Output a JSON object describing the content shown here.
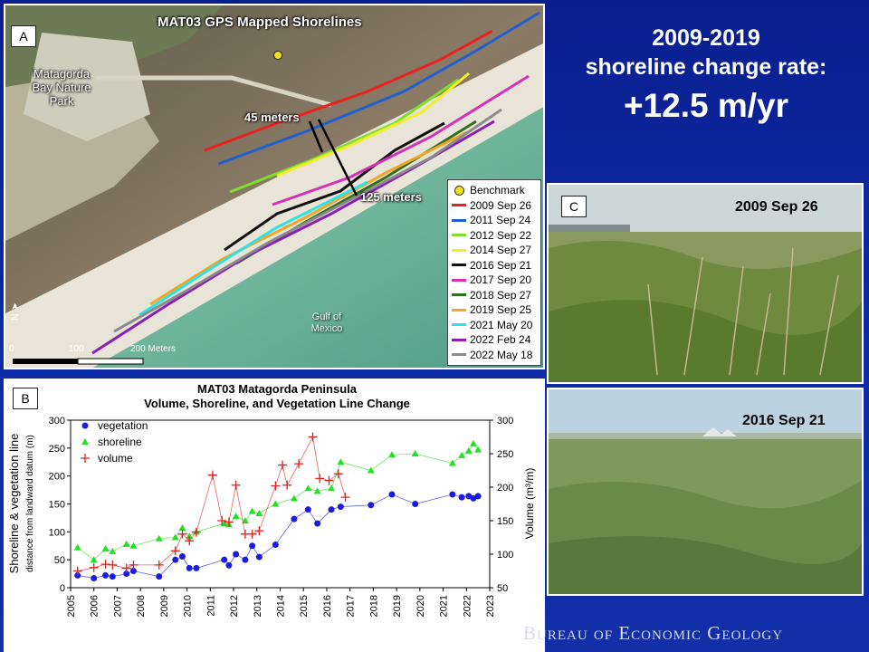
{
  "headline": {
    "line1": "2009-2019",
    "line2": "shoreline change rate:",
    "line3": "+12.5 m/yr"
  },
  "panel_a": {
    "label": "A",
    "title": "MAT03 GPS Mapped Shorelines",
    "park_label": "Matagorda Bay Nature Park",
    "measure_small": "45 meters",
    "measure_large": "125 meters",
    "gulf_label": "Gulf of Mexico",
    "north_label": "N",
    "scale_labels": [
      "0",
      "100",
      "200 Meters"
    ],
    "legend": [
      {
        "label": "Benchmark",
        "color": "#f3e21a",
        "kind": "dot"
      },
      {
        "label": "2009 Sep 26",
        "color": "#e8231f",
        "kind": "line"
      },
      {
        "label": "2011 Sep 24",
        "color": "#1f5fd0",
        "kind": "line"
      },
      {
        "label": "2012 Sep 22",
        "color": "#7ee02a",
        "kind": "line"
      },
      {
        "label": "2014 Sep 27",
        "color": "#f2ee2a",
        "kind": "line"
      },
      {
        "label": "2016 Sep 21",
        "color": "#111111",
        "kind": "line"
      },
      {
        "label": "2017 Sep 20",
        "color": "#d62fb8",
        "kind": "line"
      },
      {
        "label": "2018 Sep 27",
        "color": "#2f6f1e",
        "kind": "line"
      },
      {
        "label": "2019 Sep 25",
        "color": "#f2a623",
        "kind": "line"
      },
      {
        "label": "2021 May 20",
        "color": "#2ee0e8",
        "kind": "line"
      },
      {
        "label": "2022 Feb 24",
        "color": "#8a1fb8",
        "kind": "line"
      },
      {
        "label": "2022 May 18",
        "color": "#8a8a8a",
        "kind": "line"
      }
    ]
  },
  "panel_c": {
    "label": "C",
    "photo1_date": "2009 Sep 26",
    "photo2_date": "2016 Sep 21"
  },
  "panel_b": {
    "label": "B"
  },
  "chart_data": {
    "type": "scatter",
    "title": "MAT03 Matagorda Peninsula",
    "subtitle": "Volume, Shoreline, and Vegetation Line Change",
    "ylabel_left": "Shoreline & vegetation line",
    "ylabel_left_sub": "distance from landward datum (m)",
    "ylabel_right": "Volume (m³/m)",
    "xlim": [
      2005,
      2023
    ],
    "ylim_left": [
      0,
      300
    ],
    "ylim_right": [
      50,
      300
    ],
    "x_ticks": [
      "2005",
      "2006",
      "2007",
      "2008",
      "2009",
      "2010",
      "2011",
      "2012",
      "2013",
      "2014",
      "2015",
      "2016",
      "2017",
      "2018",
      "2019",
      "2020",
      "2021",
      "2022",
      "2023"
    ],
    "y_left_ticks": [
      "0",
      "50",
      "100",
      "150",
      "200",
      "250",
      "300"
    ],
    "y_right_ticks": [
      "50",
      "100",
      "150",
      "200",
      "250",
      "300"
    ],
    "series": [
      {
        "name": "vegetation",
        "color": "#1a1ae0",
        "marker": "circle",
        "axis": "left",
        "x": [
          2005.3,
          2006.0,
          2006.5,
          2006.8,
          2007.4,
          2007.7,
          2008.8,
          2009.5,
          2009.8,
          2010.1,
          2010.4,
          2011.6,
          2011.8,
          2012.1,
          2012.5,
          2012.8,
          2013.1,
          2013.8,
          2014.6,
          2015.2,
          2015.6,
          2016.2,
          2016.6,
          2017.9,
          2018.8,
          2019.8,
          2021.4,
          2021.8,
          2022.1,
          2022.3,
          2022.5
        ],
        "y": [
          22,
          17,
          22,
          20,
          25,
          30,
          20,
          50,
          56,
          35,
          35,
          50,
          40,
          60,
          50,
          75,
          55,
          77,
          123,
          140,
          115,
          140,
          145,
          148,
          167,
          150,
          167,
          162,
          164,
          160,
          164
        ]
      },
      {
        "name": "shoreline",
        "color": "#22e022",
        "marker": "triangle",
        "axis": "left",
        "x": [
          2005.3,
          2006.0,
          2006.5,
          2006.8,
          2007.4,
          2007.7,
          2008.8,
          2009.5,
          2009.8,
          2010.1,
          2010.4,
          2011.6,
          2011.8,
          2012.1,
          2012.5,
          2012.8,
          2013.1,
          2013.8,
          2014.6,
          2015.2,
          2015.6,
          2016.2,
          2016.6,
          2017.9,
          2018.8,
          2019.8,
          2021.4,
          2021.8,
          2022.1,
          2022.3,
          2022.5
        ],
        "y": [
          72,
          50,
          70,
          65,
          78,
          75,
          88,
          90,
          107,
          92,
          100,
          115,
          113,
          128,
          120,
          137,
          133,
          150,
          160,
          178,
          173,
          178,
          225,
          210,
          238,
          240,
          223,
          237,
          245,
          258,
          247
        ]
      },
      {
        "name": "volume",
        "color": "#e02020",
        "marker": "plus",
        "axis": "right",
        "x": [
          2005.3,
          2006.0,
          2006.5,
          2006.8,
          2007.4,
          2007.7,
          2008.8,
          2009.5,
          2009.8,
          2010.1,
          2010.4,
          2011.1,
          2011.5,
          2011.8,
          2012.1,
          2012.5,
          2012.8,
          2013.1,
          2013.8,
          2014.1,
          2014.3,
          2014.8,
          2015.4,
          2015.7,
          2016.1,
          2016.5,
          2016.8
        ],
        "y": [
          75,
          80,
          85,
          84,
          79,
          84,
          84,
          105,
          130,
          120,
          133,
          218,
          150,
          148,
          203,
          130,
          130,
          135,
          202,
          233,
          203,
          235,
          275,
          213,
          210,
          220,
          185
        ]
      }
    ],
    "legend_position": "top-left"
  },
  "footer": {
    "text": "Bureau of Economic Geology"
  }
}
